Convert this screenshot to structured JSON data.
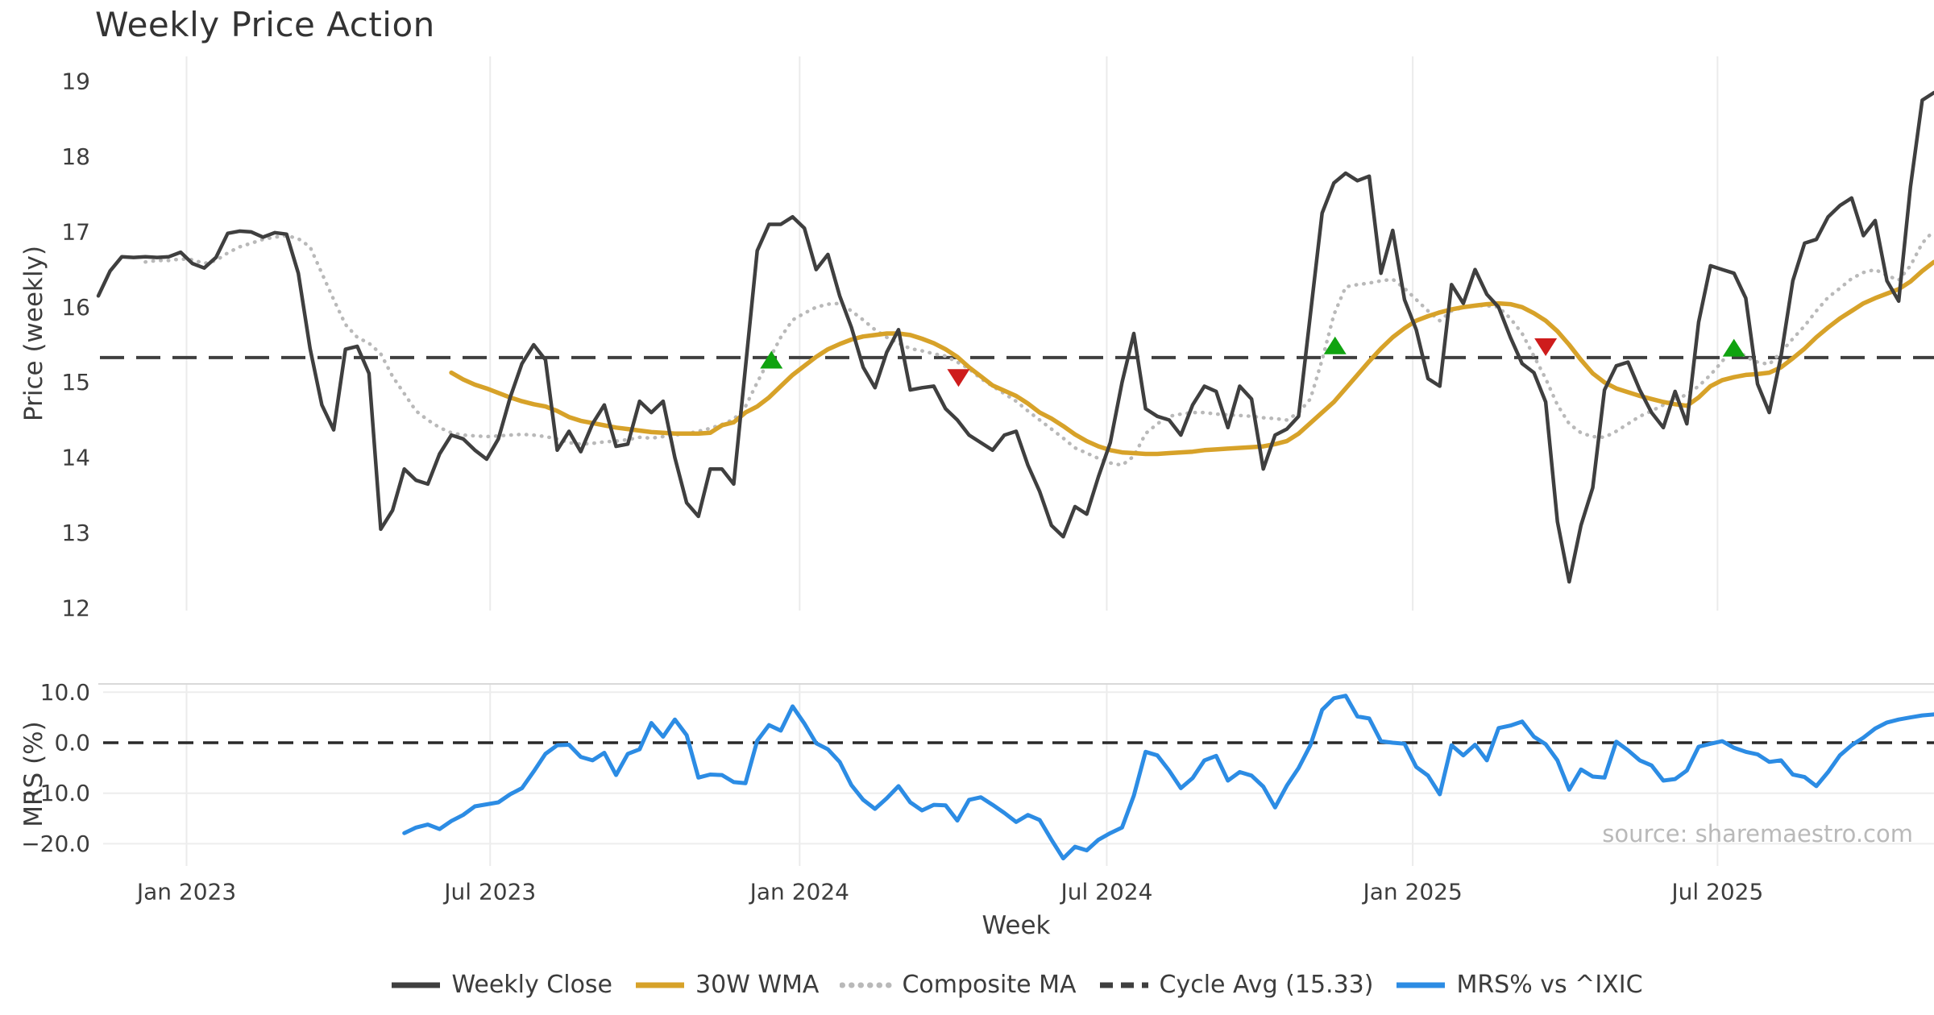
{
  "source_text": "source: sharemaestro.com",
  "legend": {
    "items": [
      {
        "id": "weekly-close",
        "label": "Weekly Close",
        "color": "#3f3f3f",
        "style": "solid"
      },
      {
        "id": "wma",
        "label": "30W WMA",
        "color": "#d7a229",
        "style": "solid"
      },
      {
        "id": "composite",
        "label": "Composite MA",
        "color": "#b9b9b9",
        "style": "dotted"
      },
      {
        "id": "cycle-avg",
        "label": "Cycle Avg (15.33)",
        "color": "#3f3f3f",
        "style": "dashed"
      },
      {
        "id": "mrs",
        "label": "MRS% vs ^IXIC",
        "color": "#2c8ce4",
        "style": "solid"
      }
    ]
  },
  "chart_data": [
    {
      "type": "line",
      "title": "Weekly Price Action",
      "ylabel": "Price (weekly)",
      "xlabel": "Week",
      "x_unit": "weeks since 2022-11-14",
      "x_range": [
        0,
        156
      ],
      "ylim": [
        11.9,
        19.35
      ],
      "grid": "vertical-only",
      "yticks": [
        {
          "value": 19,
          "label": "19"
        },
        {
          "value": 18,
          "label": "18"
        },
        {
          "value": 17,
          "label": "17"
        },
        {
          "value": 16,
          "label": "16"
        },
        {
          "value": 15,
          "label": "15"
        },
        {
          "value": 14,
          "label": "14"
        },
        {
          "value": 13,
          "label": "13"
        },
        {
          "value": 12,
          "label": "12"
        }
      ],
      "xticks": [
        {
          "week": 7.5,
          "label": "Jan 2023"
        },
        {
          "week": 33.3,
          "label": "Jul 2023"
        },
        {
          "week": 59.6,
          "label": "Jan 2024"
        },
        {
          "week": 85.7,
          "label": "Jul 2024"
        },
        {
          "week": 111.7,
          "label": "Jan 2025"
        },
        {
          "week": 137.6,
          "label": "Jul 2025"
        }
      ],
      "reference_line": {
        "name": "Cycle Avg",
        "value": 15.33,
        "color": "#3f3f3f",
        "style": "dashed"
      },
      "series": [
        {
          "id": "composite",
          "name": "Composite MA",
          "color": "#b9b9b9",
          "style": "dotted",
          "width": 4.5,
          "start_week": 4,
          "values": [
            16.6,
            16.62,
            16.62,
            16.64,
            16.63,
            16.58,
            16.62,
            16.72,
            16.8,
            16.85,
            16.9,
            16.93,
            16.95,
            16.91,
            16.8,
            16.45,
            16.1,
            15.77,
            15.6,
            15.52,
            15.38,
            15.08,
            14.85,
            14.62,
            14.5,
            14.4,
            14.33,
            14.3,
            14.29,
            14.28,
            14.29,
            14.3,
            14.31,
            14.3,
            14.28,
            14.25,
            14.2,
            14.18,
            14.19,
            14.21,
            14.22,
            14.24,
            14.27,
            14.26,
            14.28,
            14.3,
            14.32,
            14.35,
            14.39,
            14.44,
            14.51,
            14.68,
            15.0,
            15.3,
            15.6,
            15.83,
            15.92,
            16.0,
            16.04,
            16.05,
            15.95,
            15.83,
            15.7,
            15.6,
            15.52,
            15.45,
            15.42,
            15.38,
            15.35,
            15.27,
            15.18,
            15.05,
            14.95,
            14.85,
            14.75,
            14.62,
            14.5,
            14.38,
            14.26,
            14.13,
            14.06,
            13.99,
            13.93,
            13.9,
            14.02,
            14.32,
            14.45,
            14.55,
            14.58,
            14.6,
            14.6,
            14.58,
            14.57,
            14.56,
            14.55,
            14.53,
            14.52,
            14.5,
            14.6,
            14.78,
            15.3,
            15.9,
            16.27,
            16.3,
            16.32,
            16.35,
            16.37,
            16.25,
            16.1,
            15.95,
            15.82,
            15.95,
            16.0,
            16.02,
            16.02,
            16.0,
            15.85,
            15.65,
            15.35,
            15.05,
            14.7,
            14.45,
            14.33,
            14.28,
            14.27,
            14.35,
            14.45,
            14.55,
            14.62,
            14.7,
            14.77,
            14.84,
            14.95,
            15.1,
            15.28,
            15.48,
            15.34,
            15.27,
            15.24,
            15.4,
            15.58,
            15.75,
            15.95,
            16.13,
            16.25,
            16.38,
            16.46,
            16.5,
            16.42,
            16.36,
            16.55,
            16.85,
            17.02
          ]
        },
        {
          "id": "wma",
          "name": "30W WMA",
          "color": "#d7a229",
          "style": "solid",
          "width": 5.5,
          "start_week": 30,
          "values": [
            15.13,
            15.04,
            14.97,
            14.92,
            14.86,
            14.8,
            14.75,
            14.71,
            14.68,
            14.62,
            14.54,
            14.49,
            14.46,
            14.43,
            14.4,
            14.38,
            14.36,
            14.34,
            14.33,
            14.32,
            14.32,
            14.32,
            14.33,
            14.43,
            14.47,
            14.6,
            14.68,
            14.8,
            14.95,
            15.1,
            15.22,
            15.34,
            15.44,
            15.51,
            15.57,
            15.61,
            15.63,
            15.65,
            15.65,
            15.63,
            15.58,
            15.52,
            15.44,
            15.34,
            15.2,
            15.08,
            14.96,
            14.89,
            14.82,
            14.72,
            14.6,
            14.52,
            14.42,
            14.31,
            14.22,
            14.15,
            14.1,
            14.07,
            14.06,
            14.05,
            14.05,
            14.06,
            14.07,
            14.08,
            14.1,
            14.11,
            14.12,
            14.13,
            14.14,
            14.15,
            14.18,
            14.22,
            14.32,
            14.46,
            14.6,
            14.74,
            14.92,
            15.1,
            15.28,
            15.45,
            15.6,
            15.72,
            15.82,
            15.88,
            15.93,
            15.97,
            16.0,
            16.02,
            16.04,
            16.05,
            16.04,
            16.0,
            15.92,
            15.82,
            15.68,
            15.5,
            15.3,
            15.12,
            15.0,
            14.92,
            14.87,
            14.82,
            14.78,
            14.74,
            14.71,
            14.69,
            14.8,
            14.95,
            15.03,
            15.07,
            15.1,
            15.11,
            15.13,
            15.2,
            15.32,
            15.45,
            15.6,
            15.73,
            15.85,
            15.95,
            16.05,
            16.12,
            16.18,
            16.24,
            16.34,
            16.48,
            16.6
          ]
        },
        {
          "id": "weekly-close",
          "name": "Weekly Close",
          "color": "#3f3f3f",
          "style": "solid",
          "width": 4.5,
          "start_week": 0,
          "values": [
            16.15,
            16.48,
            16.67,
            16.66,
            16.67,
            16.66,
            16.67,
            16.73,
            16.58,
            16.52,
            16.66,
            16.98,
            17.01,
            17.0,
            16.93,
            16.99,
            16.97,
            16.45,
            15.45,
            14.7,
            14.37,
            15.44,
            15.48,
            15.12,
            13.05,
            13.3,
            13.85,
            13.7,
            13.65,
            14.05,
            14.3,
            14.25,
            14.1,
            13.98,
            14.25,
            14.8,
            15.25,
            15.5,
            15.3,
            14.1,
            14.35,
            14.08,
            14.45,
            14.7,
            14.15,
            14.18,
            14.75,
            14.6,
            14.75,
            14.0,
            13.4,
            13.22,
            13.85,
            13.85,
            13.65,
            15.2,
            16.75,
            17.1,
            17.1,
            17.2,
            17.05,
            16.5,
            16.7,
            16.15,
            15.73,
            15.2,
            14.93,
            15.4,
            15.7,
            14.9,
            14.93,
            14.95,
            14.65,
            14.5,
            14.3,
            14.2,
            14.1,
            14.3,
            14.35,
            13.9,
            13.55,
            13.1,
            12.95,
            13.35,
            13.25,
            13.75,
            14.2,
            15.0,
            15.65,
            14.65,
            14.55,
            14.5,
            14.3,
            14.7,
            14.95,
            14.88,
            14.4,
            14.95,
            14.78,
            13.85,
            14.3,
            14.38,
            14.55,
            15.9,
            17.25,
            17.65,
            17.78,
            17.68,
            17.74,
            16.45,
            17.02,
            16.1,
            15.7,
            15.05,
            14.95,
            16.3,
            16.05,
            16.5,
            16.17,
            16.0,
            15.6,
            15.25,
            15.13,
            14.74,
            13.15,
            12.35,
            13.1,
            13.6,
            14.9,
            15.22,
            15.27,
            14.9,
            14.6,
            14.4,
            14.88,
            14.45,
            15.8,
            16.55,
            16.5,
            16.45,
            16.12,
            14.98,
            14.6,
            15.35,
            16.35,
            16.85,
            16.9,
            17.2,
            17.35,
            17.45,
            16.95,
            17.15,
            16.35,
            16.08,
            17.6,
            18.75,
            18.85
          ]
        }
      ],
      "markers": {
        "buy": {
          "shape": "triangle-up",
          "color": "#10a310",
          "points": [
            {
              "week": 57.2,
              "value": 15.28
            },
            {
              "week": 105.1,
              "value": 15.47
            },
            {
              "week": 139.0,
              "value": 15.44
            }
          ]
        },
        "sell": {
          "shape": "triangle-down",
          "color": "#ce1c1c",
          "points": [
            {
              "week": 73.1,
              "value": 15.08
            },
            {
              "week": 123.0,
              "value": 15.49
            }
          ]
        }
      }
    },
    {
      "type": "line",
      "title": "",
      "ylabel": "MRS (%)",
      "xlabel": "",
      "x_unit": "weeks since 2022-11-14 (shared axis)",
      "x_range": [
        0,
        156
      ],
      "ylim": [
        -24.8,
        11.6
      ],
      "grid": "both",
      "yticks": [
        {
          "value": 10,
          "label": "10.0"
        },
        {
          "value": 0,
          "label": "0.0"
        },
        {
          "value": -10,
          "label": "−10.0"
        },
        {
          "value": -20,
          "label": "−20.0"
        }
      ],
      "reference_line": {
        "name": "Zero",
        "value": 0.0,
        "color": "#2a2a2a",
        "style": "dashed"
      },
      "series": [
        {
          "id": "mrs",
          "name": "MRS% vs ^IXIC",
          "color": "#2c8ce4",
          "style": "solid",
          "width": 5,
          "start_week": 26,
          "values": [
            -17.9,
            -16.8,
            -16.2,
            -17.1,
            -15.5,
            -14.3,
            -12.6,
            -12.2,
            -11.8,
            -10.2,
            -9.0,
            -5.7,
            -2.2,
            -0.5,
            -0.4,
            -2.8,
            -3.5,
            -2.0,
            -6.4,
            -2.2,
            -1.3,
            3.9,
            1.2,
            4.6,
            1.5,
            -6.9,
            -6.3,
            -6.4,
            -7.8,
            -8.0,
            0.4,
            3.5,
            2.4,
            7.2,
            3.8,
            -0.1,
            -1.3,
            -3.8,
            -8.4,
            -11.3,
            -13.1,
            -11.0,
            -8.6,
            -11.8,
            -13.4,
            -12.3,
            -12.4,
            -15.4,
            -11.3,
            -10.8,
            -12.3,
            -13.9,
            -15.7,
            -14.3,
            -15.3,
            -19.2,
            -22.9,
            -20.6,
            -21.3,
            -19.2,
            -17.9,
            -16.8,
            -10.5,
            -1.8,
            -2.5,
            -5.5,
            -9.0,
            -7.0,
            -3.5,
            -2.6,
            -7.5,
            -5.8,
            -6.5,
            -8.7,
            -12.8,
            -8.5,
            -5.0,
            -0.5,
            6.5,
            8.8,
            9.3,
            5.2,
            4.8,
            0.3,
            0.0,
            -0.2,
            -4.8,
            -6.5,
            -10.2,
            -0.5,
            -2.5,
            -0.4,
            -3.5,
            2.9,
            3.4,
            4.2,
            1.2,
            -0.3,
            -3.5,
            -9.3,
            -5.3,
            -6.7,
            -6.9,
            0.2,
            -1.5,
            -3.5,
            -4.5,
            -7.5,
            -7.2,
            -5.5,
            -0.8,
            -0.2,
            0.3,
            -1.0,
            -1.8,
            -2.3,
            -3.8,
            -3.5,
            -6.3,
            -6.8,
            -8.6,
            -5.8,
            -2.5,
            -0.5,
            1.0,
            2.8,
            4.0,
            4.6,
            5.0,
            5.4,
            5.6
          ]
        }
      ]
    }
  ],
  "style": {
    "background": "#ffffff",
    "grid_color": "#ebebeb",
    "hgrid_color": "#ededed",
    "spine_color": "#d9d9d9",
    "tick_color": "#3d3d3d",
    "title_color": "#333333",
    "source_color": "#b9b9b9"
  }
}
